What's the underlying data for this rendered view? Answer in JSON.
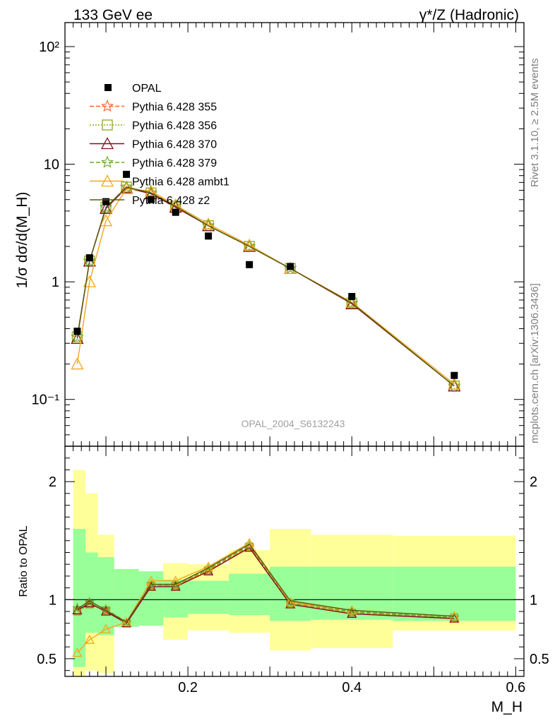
{
  "header": {
    "left_label": "133 GeV ee",
    "right_label": "γ*/Z (Hadronic)"
  },
  "side_text": {
    "rivet": "Rivet 3.1.10, ≥ 2.5M events",
    "mcplots": "mcplots.cern.ch [arXiv:1306.3436]"
  },
  "watermark": "OPAL_2004_S6132243",
  "chart_data": [
    {
      "type": "line",
      "panel": "main",
      "ylabel": "1/σ dσ/d(M_H)",
      "yscale": "log",
      "ylim": [
        0.04,
        160
      ],
      "xlim": [
        0.05,
        0.61
      ],
      "ytick_labels": [
        "10⁻¹",
        "1",
        "10",
        "10²"
      ],
      "legend_placement": "top-left",
      "data": {
        "name": "OPAL",
        "x": [
          0.065,
          0.08,
          0.1,
          0.125,
          0.155,
          0.185,
          0.225,
          0.275,
          0.325,
          0.4,
          0.525
        ],
        "y": [
          0.38,
          1.6,
          4.8,
          8.2,
          5.0,
          3.9,
          2.45,
          1.4,
          1.35,
          0.75,
          0.16
        ]
      },
      "series": [
        {
          "name": "Pythia 6.428 355",
          "color": "#f26522",
          "dash": "6,3",
          "marker": "star",
          "x": [
            0.065,
            0.08,
            0.1,
            0.125,
            0.155,
            0.185,
            0.225,
            0.275,
            0.325,
            0.4,
            0.525
          ],
          "y": [
            0.34,
            1.5,
            4.3,
            6.4,
            5.7,
            4.4,
            3.0,
            2.0,
            1.3,
            0.66,
            0.13
          ]
        },
        {
          "name": "Pythia 6.428 356",
          "color": "#8cab1c",
          "dash": "2,2",
          "marker": "square",
          "x": [
            0.065,
            0.08,
            0.1,
            0.125,
            0.155,
            0.185,
            0.225,
            0.275,
            0.325,
            0.4,
            0.525
          ],
          "y": [
            0.34,
            1.5,
            4.3,
            6.4,
            5.7,
            4.4,
            3.0,
            2.0,
            1.3,
            0.66,
            0.13
          ]
        },
        {
          "name": "Pythia 6.428 370",
          "color": "#8b0a1e",
          "dash": "",
          "marker": "triangle",
          "x": [
            0.065,
            0.08,
            0.1,
            0.125,
            0.155,
            0.185,
            0.225,
            0.275,
            0.325,
            0.4,
            0.525
          ],
          "y": [
            0.33,
            1.5,
            4.2,
            6.3,
            5.6,
            4.3,
            3.0,
            2.0,
            1.3,
            0.65,
            0.13
          ]
        },
        {
          "name": "Pythia 6.428 379",
          "color": "#6aaa2a",
          "dash": "6,3",
          "marker": "star",
          "x": [
            0.065,
            0.08,
            0.1,
            0.125,
            0.155,
            0.185,
            0.225,
            0.275,
            0.325,
            0.4,
            0.525
          ],
          "y": [
            0.34,
            1.5,
            4.3,
            6.4,
            5.7,
            4.4,
            3.0,
            2.0,
            1.3,
            0.66,
            0.13
          ]
        },
        {
          "name": "Pythia 6.428 ambt1",
          "color": "#f0a81c",
          "dash": "",
          "marker": "triangle",
          "x": [
            0.065,
            0.08,
            0.1,
            0.125,
            0.155,
            0.185,
            0.225,
            0.275,
            0.325,
            0.4,
            0.525
          ],
          "y": [
            0.2,
            1.0,
            3.3,
            6.2,
            5.9,
            4.5,
            3.1,
            2.05,
            1.3,
            0.67,
            0.135
          ]
        },
        {
          "name": "Pythia 6.428 z2",
          "color": "#5a5a10",
          "dash": "",
          "marker": "none",
          "x": [
            0.065,
            0.08,
            0.1,
            0.125,
            0.155,
            0.185,
            0.225,
            0.275,
            0.325,
            0.4,
            0.525
          ],
          "y": [
            0.34,
            1.5,
            4.3,
            6.4,
            5.7,
            4.4,
            3.0,
            2.0,
            1.3,
            0.66,
            0.13
          ]
        }
      ]
    },
    {
      "type": "line",
      "panel": "ratio",
      "ylabel": "Ratio to OPAL",
      "xlabel": "M_H",
      "ylim": [
        0.35,
        2.3
      ],
      "xlim": [
        0.05,
        0.61
      ],
      "yticks": [
        0.5,
        1,
        2
      ],
      "ytick_labels": [
        "0.5",
        "1",
        "2"
      ],
      "xticks": [
        0.2,
        0.4,
        0.6
      ],
      "xtick_labels": [
        "0.2",
        "0.4",
        "0.6"
      ],
      "bands": {
        "edges": [
          0.06,
          0.075,
          0.09,
          0.11,
          0.14,
          0.17,
          0.2,
          0.25,
          0.3,
          0.35,
          0.45,
          0.6
        ],
        "outer_lo": [
          0.35,
          0.4,
          0.38,
          0.77,
          0.78,
          0.66,
          0.74,
          0.72,
          0.57,
          0.59,
          0.74,
          0.56
        ],
        "outer_hi": [
          2.1,
          1.9,
          1.55,
          1.26,
          1.24,
          1.31,
          1.3,
          1.42,
          1.6,
          1.55,
          1.54,
          1.54
        ],
        "inner_lo": [
          0.43,
          0.72,
          0.7,
          0.77,
          0.78,
          0.85,
          0.88,
          0.87,
          0.82,
          0.83,
          0.82,
          0.82
        ],
        "inner_hi": [
          1.6,
          1.4,
          1.36,
          1.26,
          1.24,
          1.17,
          1.16,
          1.22,
          1.28,
          1.28,
          1.28,
          1.28
        ],
        "inner_color": "#99ff99",
        "outer_color": "#ffff99"
      },
      "series": [
        {
          "name": "Pythia 6.428 355",
          "color": "#f26522",
          "dash": "6,3",
          "x": [
            0.065,
            0.08,
            0.1,
            0.125,
            0.155,
            0.185,
            0.225,
            0.275,
            0.325,
            0.4,
            0.525
          ],
          "y": [
            0.9,
            0.96,
            0.91,
            0.8,
            1.12,
            1.12,
            1.25,
            1.45,
            0.97,
            0.89,
            0.85
          ]
        },
        {
          "name": "Pythia 6.428 356",
          "color": "#8cab1c",
          "dash": "2,2",
          "x": [
            0.065,
            0.08,
            0.1,
            0.125,
            0.155,
            0.185,
            0.225,
            0.275,
            0.325,
            0.4,
            0.525
          ],
          "y": [
            0.9,
            0.96,
            0.91,
            0.8,
            1.12,
            1.12,
            1.25,
            1.45,
            0.97,
            0.89,
            0.85
          ]
        },
        {
          "name": "Pythia 6.428 370",
          "color": "#8b0a1e",
          "dash": "",
          "x": [
            0.065,
            0.08,
            0.1,
            0.125,
            0.155,
            0.185,
            0.225,
            0.275,
            0.325,
            0.4,
            0.525
          ],
          "y": [
            0.91,
            0.97,
            0.9,
            0.8,
            1.11,
            1.11,
            1.24,
            1.44,
            0.96,
            0.88,
            0.84
          ]
        },
        {
          "name": "Pythia 6.428 379",
          "color": "#6aaa2a",
          "dash": "6,3",
          "x": [
            0.065,
            0.08,
            0.1,
            0.125,
            0.155,
            0.185,
            0.225,
            0.275,
            0.325,
            0.4,
            0.525
          ],
          "y": [
            0.93,
            0.98,
            0.92,
            0.81,
            1.13,
            1.13,
            1.26,
            1.46,
            0.98,
            0.9,
            0.85
          ]
        },
        {
          "name": "Pythia 6.428 ambt1",
          "color": "#f0a81c",
          "dash": "",
          "x": [
            0.065,
            0.08,
            0.1,
            0.125,
            0.155,
            0.185,
            0.225,
            0.275,
            0.325,
            0.4,
            0.525
          ],
          "y": [
            0.55,
            0.66,
            0.75,
            0.81,
            1.16,
            1.16,
            1.28,
            1.48,
            0.98,
            0.91,
            0.86
          ]
        },
        {
          "name": "Pythia 6.428 z2",
          "color": "#5a5a10",
          "dash": "",
          "x": [
            0.065,
            0.08,
            0.1,
            0.125,
            0.155,
            0.185,
            0.225,
            0.275,
            0.325,
            0.4,
            0.525
          ],
          "y": [
            0.92,
            0.99,
            0.91,
            0.81,
            1.13,
            1.13,
            1.27,
            1.47,
            0.99,
            0.91,
            0.86
          ]
        }
      ]
    }
  ]
}
